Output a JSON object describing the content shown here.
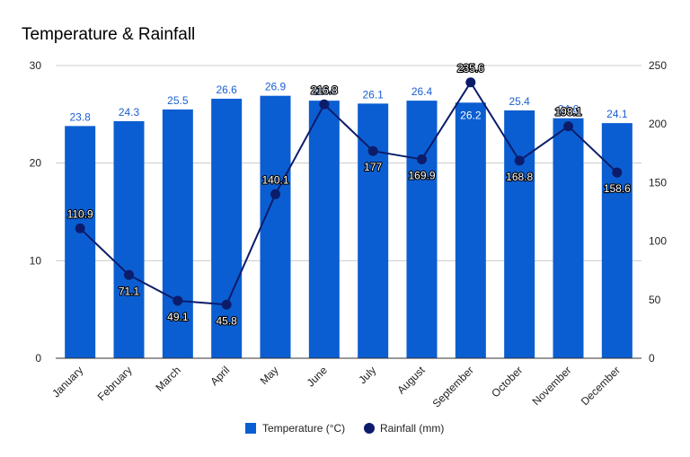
{
  "chart_data": {
    "type": "bar",
    "title": "Temperature & Rainfall",
    "categories": [
      "January",
      "February",
      "March",
      "April",
      "May",
      "June",
      "July",
      "August",
      "September",
      "October",
      "November",
      "December"
    ],
    "series": [
      {
        "name": "Temperature (°C)",
        "type": "bar",
        "axis": "left",
        "color": "#0b5ed1",
        "label_color": "#1a5fd0",
        "label_color_inside": "#ffffff",
        "values": [
          23.8,
          24.3,
          25.5,
          26.6,
          26.9,
          26.4,
          26.1,
          26.4,
          26.2,
          25.4,
          24.6,
          24.1
        ],
        "value_labels": [
          "23.8",
          "24.3",
          "25.5",
          "26.6",
          "26.9",
          "26.4",
          "26.1",
          "26.4",
          "26.2",
          "25.4",
          "24.6",
          "24.1"
        ]
      },
      {
        "name": "Rainfall (mm)",
        "type": "line",
        "axis": "right",
        "color": "#0c1c6b",
        "values": [
          110.9,
          71.1,
          49.1,
          45.8,
          140.1,
          216.8,
          177,
          169.9,
          235.6,
          168.8,
          198.1,
          158.6
        ],
        "value_labels": [
          "110.9",
          "71.1",
          "49.1",
          "45.8",
          "140.1",
          "216.8",
          "177",
          "169.9",
          "235.6",
          "168.8",
          "198.1",
          "158.6"
        ]
      }
    ],
    "y_left": {
      "min": 0,
      "max": 30,
      "ticks": [
        "0",
        "10",
        "20",
        "30"
      ]
    },
    "y_right": {
      "min": 0,
      "max": 250,
      "ticks": [
        "0",
        "50",
        "100",
        "150",
        "200",
        "250"
      ]
    },
    "grid": true,
    "legend": "bottom",
    "xlabel": "",
    "ylabel": ""
  }
}
